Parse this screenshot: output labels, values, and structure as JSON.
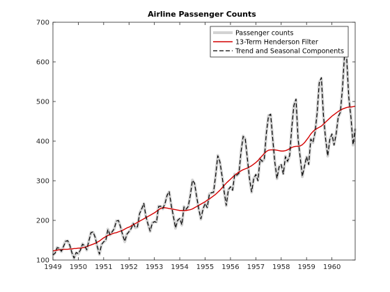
{
  "chart_data": {
    "type": "line",
    "title": "Airline Passenger Counts",
    "xlabel": "",
    "ylabel": "",
    "xlim": [
      1949,
      1960.9167
    ],
    "ylim": [
      100,
      700
    ],
    "x_ticks": [
      "1949",
      "1950",
      "1951",
      "1952",
      "1953",
      "1954",
      "1955",
      "1956",
      "1957",
      "1958",
      "1959",
      "1960"
    ],
    "y_ticks": [
      "100",
      "200",
      "300",
      "400",
      "500",
      "600",
      "700"
    ],
    "grid": false,
    "legend_position": "top-right",
    "x": {
      "start": 1949,
      "step_months": 1,
      "count": 144
    },
    "series": [
      {
        "name": "Passenger counts",
        "color": "#d3d3d3",
        "style": "solid",
        "values": [
          112,
          118,
          132,
          129,
          121,
          135,
          148,
          148,
          136,
          119,
          104,
          118,
          115,
          126,
          141,
          135,
          125,
          149,
          170,
          170,
          158,
          133,
          114,
          140,
          145,
          150,
          178,
          163,
          172,
          178,
          199,
          199,
          184,
          162,
          146,
          166,
          171,
          180,
          193,
          181,
          183,
          218,
          230,
          242,
          209,
          191,
          172,
          194,
          196,
          196,
          236,
          235,
          229,
          243,
          264,
          272,
          237,
          211,
          180,
          201,
          204,
          188,
          235,
          227,
          234,
          264,
          302,
          293,
          259,
          229,
          203,
          229,
          242,
          233,
          267,
          269,
          270,
          315,
          364,
          347,
          312,
          274,
          237,
          278,
          284,
          277,
          317,
          313,
          318,
          374,
          413,
          405,
          355,
          306,
          271,
          306,
          315,
          301,
          356,
          348,
          355,
          422,
          465,
          467,
          404,
          347,
          305,
          336,
          340,
          318,
          362,
          348,
          363,
          435,
          491,
          505,
          404,
          359,
          310,
          337,
          360,
          342,
          406,
          396,
          420,
          472,
          548,
          559,
          463,
          407,
          362,
          405,
          417,
          391,
          419,
          461,
          472,
          535,
          622,
          606,
          508,
          461,
          390,
          432
        ]
      },
      {
        "name": "13-Term Henderson Filter",
        "color": "#d40000",
        "style": "solid",
        "values": [
          123,
          124,
          125,
          126,
          126,
          127,
          127,
          127,
          128,
          128,
          129,
          129,
          130,
          130,
          131,
          132,
          134,
          136,
          138,
          140,
          142,
          145,
          148,
          152,
          156,
          159,
          162,
          164,
          166,
          168,
          169,
          171,
          173,
          175,
          178,
          181,
          183,
          186,
          189,
          192,
          195,
          198,
          201,
          204,
          207,
          210,
          213,
          216,
          219,
          223,
          227,
          230,
          232,
          232,
          231,
          230,
          229,
          228,
          227,
          226,
          225,
          225,
          225,
          225,
          226,
          227,
          229,
          232,
          235,
          238,
          241,
          244,
          247,
          251,
          254,
          258,
          262,
          266,
          271,
          276,
          282,
          288,
          294,
          299,
          304,
          309,
          314,
          318,
          322,
          325,
          328,
          330,
          332,
          335,
          338,
          342,
          346,
          351,
          357,
          363,
          369,
          374,
          377,
          378,
          378,
          378,
          377,
          376,
          375,
          375,
          376,
          378,
          381,
          384,
          386,
          387,
          387,
          388,
          391,
          396,
          403,
          410,
          418,
          424,
          429,
          432,
          435,
          438,
          443,
          448,
          453,
          458,
          463,
          467,
          471,
          475,
          478,
          481,
          483,
          485,
          486,
          486,
          487,
          488
        ]
      },
      {
        "name": "Trend and Seasonal Components",
        "color": "#000000",
        "style": "dashed",
        "values": [
          113,
          117,
          131,
          130,
          122,
          134,
          147,
          149,
          137,
          118,
          105,
          119,
          116,
          125,
          140,
          136,
          126,
          148,
          169,
          171,
          157,
          134,
          115,
          139,
          146,
          149,
          177,
          164,
          171,
          179,
          198,
          200,
          183,
          163,
          147,
          165,
          172,
          179,
          192,
          182,
          184,
          217,
          229,
          243,
          210,
          190,
          173,
          193,
          197,
          195,
          235,
          236,
          230,
          242,
          263,
          273,
          238,
          210,
          181,
          200,
          205,
          189,
          234,
          228,
          235,
          263,
          301,
          294,
          260,
          228,
          204,
          228,
          243,
          232,
          266,
          270,
          271,
          314,
          363,
          348,
          313,
          273,
          238,
          277,
          285,
          276,
          316,
          314,
          319,
          373,
          412,
          406,
          356,
          305,
          272,
          305,
          316,
          300,
          355,
          349,
          356,
          421,
          464,
          468,
          405,
          346,
          306,
          335,
          341,
          317,
          361,
          349,
          364,
          434,
          490,
          506,
          405,
          358,
          311,
          336,
          361,
          341,
          405,
          397,
          421,
          471,
          547,
          560,
          464,
          406,
          363,
          404,
          418,
          390,
          418,
          462,
          473,
          534,
          621,
          607,
          509,
          460,
          391,
          431
        ]
      }
    ]
  }
}
